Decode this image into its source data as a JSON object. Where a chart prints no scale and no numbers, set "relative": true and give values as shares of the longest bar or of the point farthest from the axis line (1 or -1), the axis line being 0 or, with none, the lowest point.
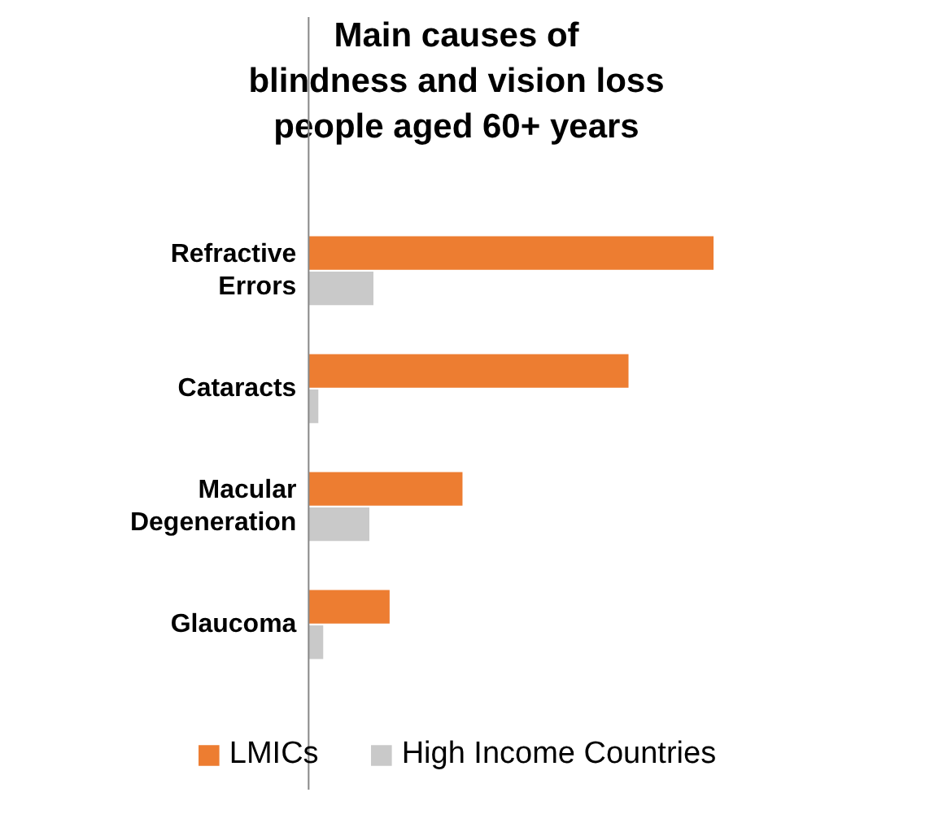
{
  "chart_data": {
    "type": "bar",
    "orientation": "horizontal",
    "relative": true,
    "title": "Main causes of\nblindness and vision loss\npeople aged 60+ years",
    "categories": [
      "Refractive Errors",
      "Cataracts",
      "Macular Degeneration",
      "Glaucoma"
    ],
    "series": [
      {
        "name": "LMICs",
        "color": "#ed7d31",
        "values": [
          1,
          0.79,
          0.38,
          0.2
        ]
      },
      {
        "name": "High Income Countries",
        "color": "#c9c9c9",
        "values": [
          0.16,
          0.024,
          0.15,
          0.036
        ]
      }
    ],
    "legend": "bottom",
    "grid": false
  }
}
